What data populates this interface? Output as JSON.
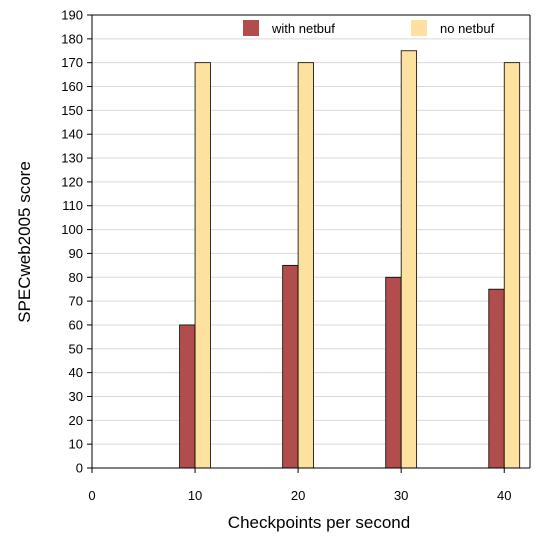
{
  "chart_data": {
    "type": "bar",
    "categories": [
      "10",
      "20",
      "30",
      "40"
    ],
    "x": [
      10,
      20,
      30,
      40
    ],
    "xticks": [
      "0",
      "10",
      "20",
      "30",
      "40"
    ],
    "xlim": [
      0,
      42.5
    ],
    "ylim": [
      0,
      190
    ],
    "ystep": 10,
    "xlabel": "Checkpoints per second",
    "ylabel": "SPECweb2005 score",
    "grid": "horizontal",
    "legend_position": "top-right",
    "series": [
      {
        "name": "with netbuf",
        "color": "#b14d4d",
        "values": [
          60,
          85,
          80,
          75
        ]
      },
      {
        "name": "no netbuf",
        "color": "#fde29f",
        "values": [
          170,
          170,
          175,
          170
        ]
      }
    ]
  }
}
